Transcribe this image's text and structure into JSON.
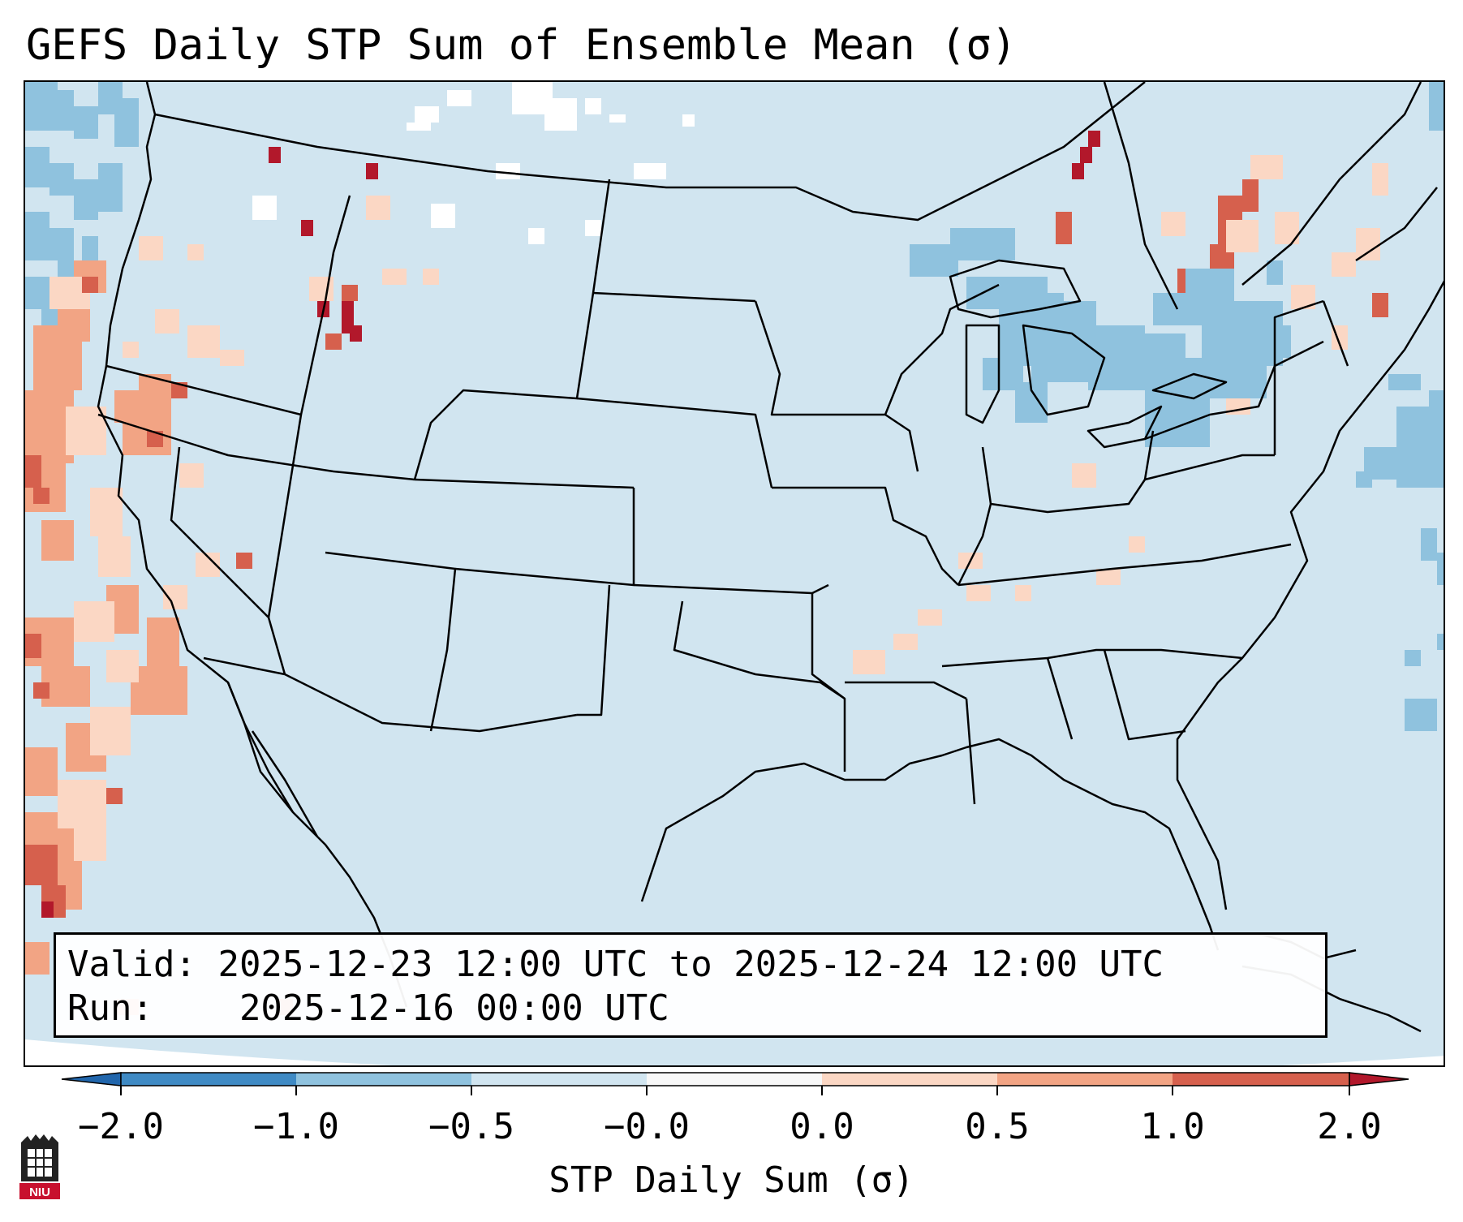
{
  "title": "GEFS Daily STP Sum of Ensemble Mean (σ)",
  "info": {
    "valid_label": "Valid:",
    "valid_value": "2025-12-23 12:00 UTC to 2025-12-24 12:00 UTC",
    "run_label": "Run:",
    "run_value": "2025-12-16 00:00 UTC"
  },
  "colorbar": {
    "label": "STP Daily Sum (σ)",
    "ticks": [
      "−2.0",
      "−1.0",
      "−0.5",
      "−0.0",
      "0.0",
      "0.5",
      "1.0",
      "2.0"
    ],
    "colors": [
      "#3f8ac4",
      "#8fc2de",
      "#d1e5f0",
      "#f7f7f7",
      "#fbd7c4",
      "#f2a484",
      "#d6604d"
    ],
    "extend_low_color": "#2166ac",
    "extend_high_color": "#b2182b"
  },
  "map": {
    "background_color": "#d1e5f0",
    "positive_anomaly_regions": [
      "Pacific coast",
      "Idaho",
      "Ohio Valley",
      "Mid-Atlantic",
      "Quebec"
    ],
    "negative_anomaly_regions": [
      "Great Lakes",
      "Pennsylvania",
      "Atlantic offshore",
      "Pacific Northwest offshore"
    ]
  },
  "logo": {
    "text": "NIU",
    "color": "#c8102e"
  }
}
